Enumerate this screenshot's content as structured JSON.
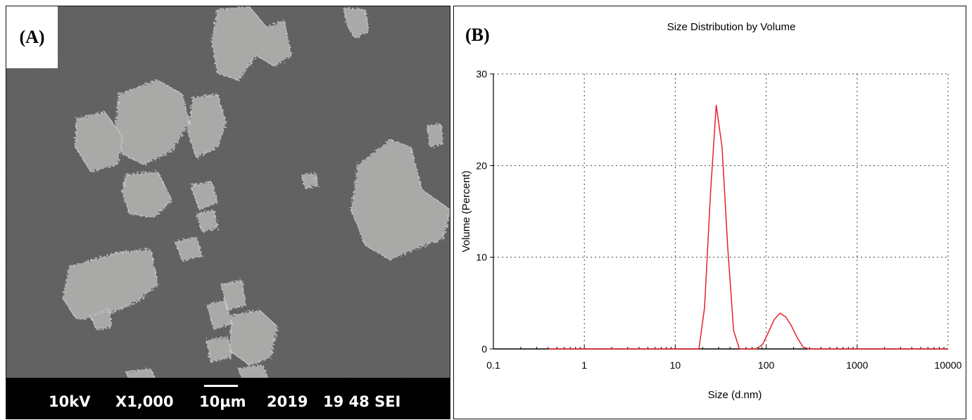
{
  "panel_a": {
    "label": "(A)",
    "info_bar": {
      "voltage": "10kV",
      "magnification": "X1,000",
      "scale": "10µm",
      "year": "2019",
      "id": "19 48 SEI"
    }
  },
  "panel_b": {
    "label": "(B)"
  },
  "colors": {
    "curve": "#e8202a",
    "sem_background": "#58595a",
    "particle": "#a9aaa8"
  },
  "chart_data": {
    "type": "line",
    "title": "Size Distribution by Volume",
    "xlabel": "Size (d.nm)",
    "ylabel": "Volume (Percent)",
    "x_scale": "log",
    "xlim": [
      0.1,
      10000
    ],
    "ylim": [
      0,
      30
    ],
    "x_ticks": [
      "0.1",
      "1",
      "10",
      "100",
      "1000",
      "10000"
    ],
    "y_ticks": [
      "0",
      "10",
      "20",
      "30"
    ],
    "grid": true,
    "series": [
      {
        "x": [
          0.4,
          1,
          10,
          18.2,
          21,
          24.4,
          28.2,
          32.7,
          37.8,
          43.8,
          50.7,
          58.8,
          68.1,
          78.8,
          91.3,
          105.7,
          122.4,
          141.8,
          164.2,
          190.1,
          220.2,
          255,
          295.3,
          400,
          1000,
          10000
        ],
        "y": [
          0,
          0,
          0,
          0,
          4.5,
          17,
          26.6,
          22,
          11,
          2,
          0,
          0,
          0,
          0,
          0.5,
          1.8,
          3.2,
          3.9,
          3.5,
          2.5,
          1.2,
          0.2,
          0,
          0,
          0,
          0
        ]
      }
    ]
  }
}
